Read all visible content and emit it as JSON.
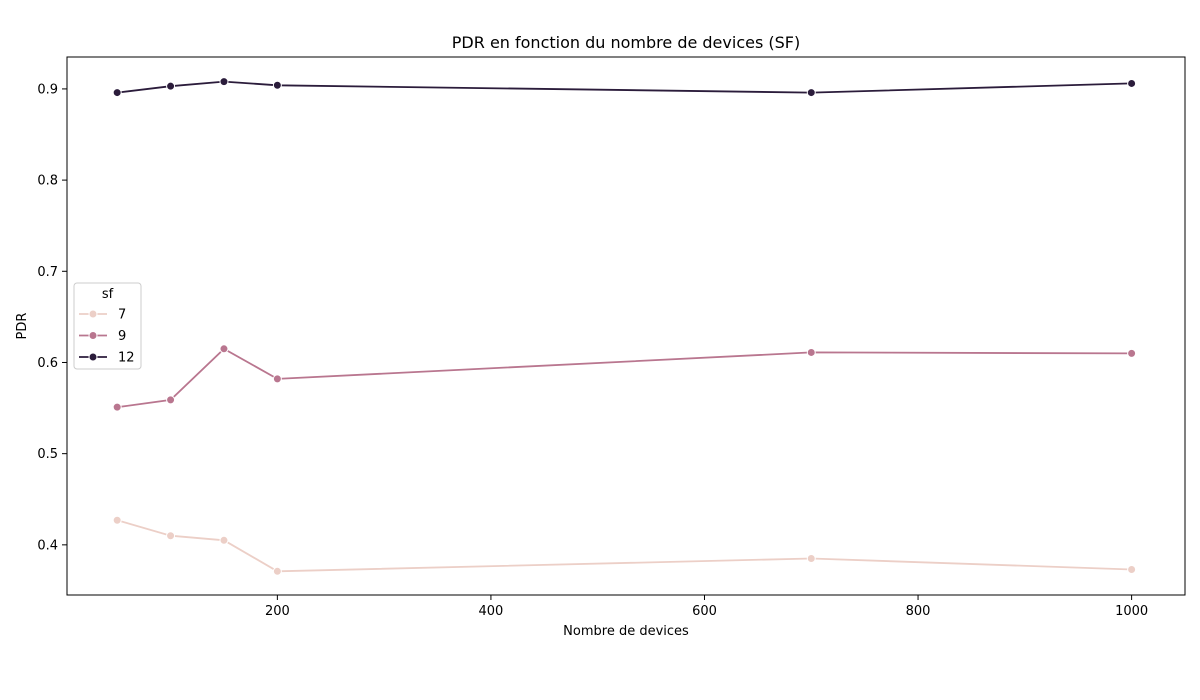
{
  "chart_data": {
    "type": "line",
    "title": "PDR en fonction du nombre de devices (SF)",
    "xlabel": "Nombre de devices",
    "ylabel": "PDR",
    "x": [
      50,
      100,
      150,
      200,
      700,
      1000
    ],
    "xlim": [
      3,
      1050
    ],
    "ylim": [
      0.345,
      0.935
    ],
    "xticks": [
      200,
      400,
      600,
      800,
      1000
    ],
    "yticks": [
      0.4,
      0.5,
      0.6,
      0.7,
      0.8,
      0.9
    ],
    "grid": false,
    "legend": {
      "title": "sf",
      "placement": "center-left"
    },
    "series": [
      {
        "name": "7",
        "color": "#eccfc7",
        "values": [
          0.427,
          0.41,
          0.405,
          0.371,
          0.385,
          0.373
        ]
      },
      {
        "name": "9",
        "color": "#b9768f",
        "values": [
          0.551,
          0.559,
          0.615,
          0.582,
          0.611,
          0.61
        ]
      },
      {
        "name": "12",
        "color": "#2b1c3b",
        "values": [
          0.896,
          0.903,
          0.908,
          0.904,
          0.896,
          0.906
        ]
      }
    ]
  }
}
